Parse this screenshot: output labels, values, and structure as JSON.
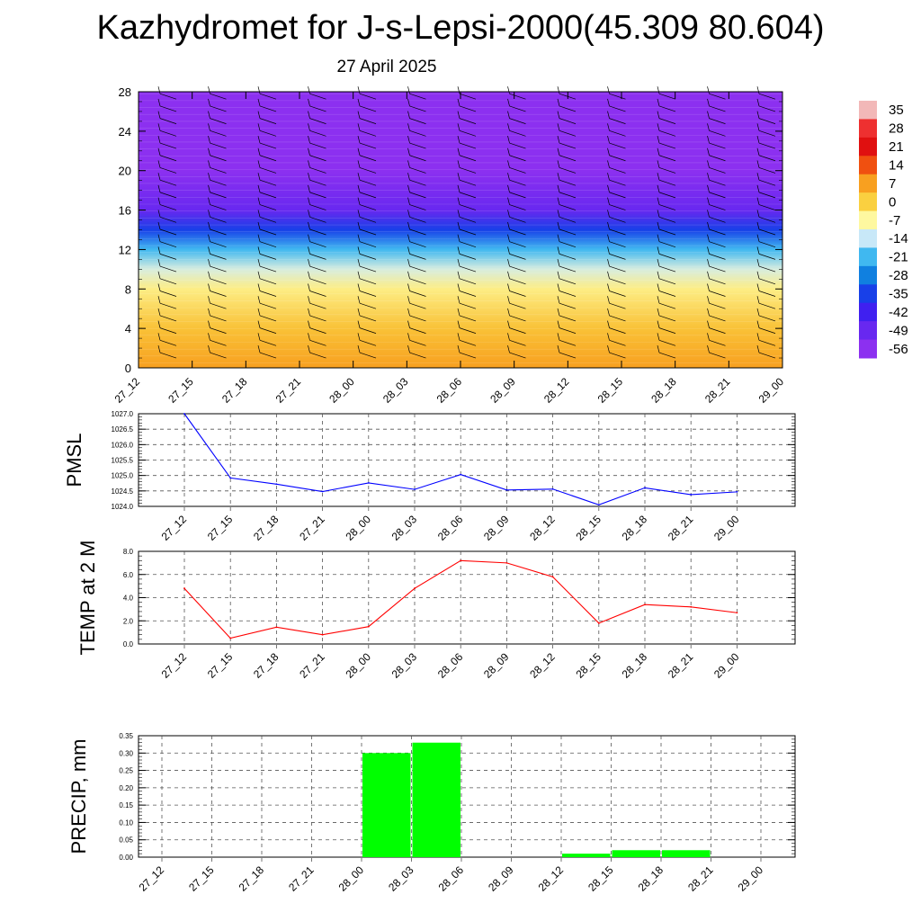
{
  "title": "Kazhydromet for J-s-Lepsi-2000(45.309 80.604)",
  "date": "27 April 2025",
  "time_labels": [
    "27_12",
    "27_15",
    "27_18",
    "27_21",
    "28_00",
    "28_03",
    "28_06",
    "28_09",
    "28_12",
    "28_15",
    "28_18",
    "28_21",
    "29_00"
  ],
  "colorbar": {
    "labels": [
      "35",
      "28",
      "21",
      "14",
      "7",
      "0",
      "-7",
      "-14",
      "-21",
      "-28",
      "-35",
      "-42",
      "-49",
      "-56"
    ],
    "colors": [
      "#f2b8b8",
      "#ee3030",
      "#e01010",
      "#f05010",
      "#f8a020",
      "#fad040",
      "#fef8a0",
      "#c8e8f8",
      "#40b8f0",
      "#1080e0",
      "#1840e8",
      "#4020f0",
      "#6828f0",
      "#8c30f0"
    ]
  },
  "chart_data": [
    {
      "type": "heatmap",
      "title": "",
      "xlabel": "",
      "ylabel": "",
      "x": [
        "27_12",
        "27_15",
        "27_18",
        "27_21",
        "28_00",
        "28_03",
        "28_06",
        "28_09",
        "28_12",
        "28_15",
        "28_18",
        "28_21",
        "29_00"
      ],
      "yticks": [
        0,
        4,
        8,
        12,
        16,
        20,
        24,
        28
      ],
      "ylim": [
        0,
        28
      ],
      "color_scale": [
        -56,
        35
      ],
      "temperature_profile": [
        {
          "level": 0,
          "value": 7
        },
        {
          "level": 4,
          "value": 2
        },
        {
          "level": 8,
          "value": -5
        },
        {
          "level": 10,
          "value": -12
        },
        {
          "level": 12,
          "value": -21
        },
        {
          "level": 14,
          "value": -35
        },
        {
          "level": 16,
          "value": -49
        },
        {
          "level": 20,
          "value": -56
        },
        {
          "level": 28,
          "value": -56
        }
      ],
      "wind_barbs": true
    },
    {
      "type": "line",
      "title": "",
      "xlabel": "",
      "ylabel": "PMSL",
      "x": [
        "27_12",
        "27_15",
        "27_18",
        "27_21",
        "28_00",
        "28_03",
        "28_06",
        "28_09",
        "28_12",
        "28_15",
        "28_18",
        "28_21",
        "29_00"
      ],
      "yticks": [
        "1024.0",
        "1024.5",
        "1025.0",
        "1025.5",
        "1026.0",
        "1026.5",
        "1027.0"
      ],
      "ylim": [
        1024.0,
        1027.0
      ],
      "color": "#0000ff",
      "series": [
        {
          "values": [
            1027.0,
            1024.92,
            1024.72,
            1024.48,
            1024.76,
            1024.55,
            1025.03,
            1024.53,
            1024.56,
            1024.05,
            1024.6,
            1024.38,
            1024.47
          ]
        }
      ],
      "grid": true
    },
    {
      "type": "line",
      "title": "",
      "xlabel": "",
      "ylabel": "TEMP at 2 M",
      "x": [
        "27_12",
        "27_15",
        "27_18",
        "27_21",
        "28_00",
        "28_03",
        "28_06",
        "28_09",
        "28_12",
        "28_15",
        "28_18",
        "28_21",
        "29_00"
      ],
      "yticks": [
        "0.0",
        "2.0",
        "4.0",
        "6.0",
        "8.0"
      ],
      "ylim": [
        0,
        8
      ],
      "color": "#ff0000",
      "series": [
        {
          "values": [
            4.8,
            0.5,
            1.45,
            0.8,
            1.5,
            4.8,
            7.2,
            7.0,
            5.8,
            1.8,
            3.4,
            3.2,
            2.7
          ]
        }
      ],
      "grid": true
    },
    {
      "type": "bar",
      "title": "",
      "xlabel": "",
      "ylabel": "PRECIP, mm",
      "categories": [
        "27_12",
        "27_15",
        "27_18",
        "27_21",
        "28_00",
        "28_03",
        "28_06",
        "28_09",
        "28_12",
        "28_15",
        "28_18",
        "28_21",
        "29_00"
      ],
      "yticks": [
        "0.00",
        "0.05",
        "0.10",
        "0.15",
        "0.20",
        "0.25",
        "0.30",
        "0.35"
      ],
      "ylim": [
        0,
        0.35
      ],
      "color": "#00ff00",
      "values": [
        0,
        0,
        0,
        0,
        0.3,
        0.33,
        0,
        0,
        0.01,
        0.02,
        0.02,
        0,
        0
      ],
      "grid": true
    }
  ]
}
